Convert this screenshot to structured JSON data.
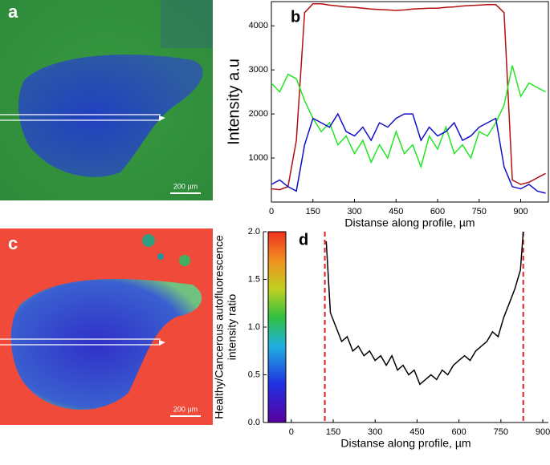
{
  "panels": [
    {
      "label": "a",
      "scale_bar": "200 µm"
    },
    {
      "label": "c",
      "scale_bar": "200 µm"
    }
  ],
  "chart_data": [
    {
      "type": "line",
      "panel_label": "b",
      "ylabel": [
        "Intensity a.u"
      ],
      "xlabel": "Distanse along profile, µm",
      "x": [
        0,
        30,
        60,
        90,
        120,
        150,
        180,
        210,
        240,
        270,
        300,
        330,
        360,
        390,
        420,
        450,
        480,
        510,
        540,
        570,
        600,
        630,
        660,
        690,
        720,
        750,
        780,
        810,
        840,
        870,
        900,
        930,
        960,
        990
      ],
      "series": [
        {
          "color": "#b01010",
          "values": [
            300,
            280,
            350,
            1400,
            4300,
            4500,
            4500,
            4470,
            4450,
            4430,
            4420,
            4400,
            4380,
            4370,
            4360,
            4350,
            4360,
            4380,
            4390,
            4400,
            4400,
            4420,
            4430,
            4450,
            4460,
            4470,
            4480,
            4480,
            4300,
            500,
            400,
            450,
            550,
            650
          ]
        },
        {
          "color": "#22e622",
          "values": [
            2700,
            2500,
            2900,
            2800,
            2300,
            1900,
            1600,
            1800,
            1300,
            1500,
            1100,
            1400,
            900,
            1300,
            1000,
            1600,
            1100,
            1300,
            800,
            1500,
            1200,
            1700,
            1100,
            1300,
            1000,
            1600,
            1500,
            1800,
            2200,
            3100,
            2400,
            2700,
            2600,
            2500
          ]
        },
        {
          "color": "#1010c8",
          "values": [
            400,
            500,
            350,
            250,
            1300,
            1900,
            1800,
            1700,
            2000,
            1600,
            1500,
            1700,
            1400,
            1800,
            1700,
            1900,
            2000,
            2000,
            1400,
            1700,
            1500,
            1600,
            1800,
            1400,
            1500,
            1700,
            1800,
            1900,
            800,
            350,
            300,
            400,
            250,
            200
          ]
        }
      ],
      "xlim": [
        0,
        1000
      ],
      "xticks": [
        0,
        150,
        300,
        450,
        600,
        750,
        900
      ],
      "ylim": [
        0,
        4550
      ],
      "yticks": [
        1000,
        2000,
        3000,
        4000
      ]
    },
    {
      "type": "line",
      "panel_label": "d",
      "ylabel": [
        "Healthy/Cancerous autofluorescence",
        "intensity ratio"
      ],
      "xlabel": "Distanse along profile, µm",
      "x": [
        125,
        140,
        160,
        180,
        200,
        220,
        240,
        260,
        280,
        300,
        320,
        340,
        360,
        380,
        400,
        420,
        440,
        460,
        480,
        500,
        520,
        540,
        560,
        580,
        600,
        620,
        640,
        660,
        680,
        700,
        720,
        740,
        760,
        780,
        800,
        820,
        830
      ],
      "series": [
        {
          "color": "#000000",
          "values": [
            1.9,
            1.15,
            1.0,
            0.85,
            0.9,
            0.75,
            0.8,
            0.7,
            0.75,
            0.65,
            0.7,
            0.6,
            0.7,
            0.55,
            0.6,
            0.5,
            0.55,
            0.4,
            0.45,
            0.5,
            0.45,
            0.55,
            0.5,
            0.6,
            0.65,
            0.7,
            0.65,
            0.75,
            0.8,
            0.85,
            0.95,
            0.9,
            1.1,
            1.25,
            1.4,
            1.6,
            2.0
          ]
        }
      ],
      "vlines": [
        120,
        830
      ],
      "vline_color": "#e02020",
      "xlim": [
        -100,
        920
      ],
      "xticks": [
        0,
        150,
        300,
        450,
        600,
        750,
        900
      ],
      "ylim": [
        0,
        2
      ],
      "yticks": [
        {
          "value": 0,
          "label": "0.0"
        },
        0.5,
        {
          "value": 1,
          "label": "1.0"
        },
        1.5,
        {
          "value": 2,
          "label": "2.0"
        }
      ]
    }
  ]
}
